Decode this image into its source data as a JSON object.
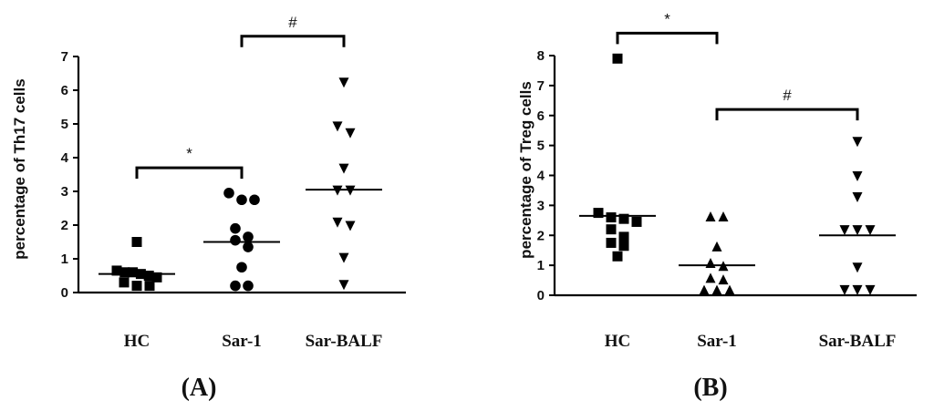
{
  "chart_data": [
    {
      "type": "scatter",
      "panel": "(A)",
      "ylabel": "percentage of Th17 cells",
      "ylim": [
        0,
        7
      ],
      "yticks": [
        "0",
        "1",
        "2",
        "3",
        "4",
        "5",
        "6",
        "7"
      ],
      "categories": [
        "HC",
        "Sar-1",
        "Sar-BALF"
      ],
      "groups": [
        {
          "category": "HC",
          "marker": "square",
          "values": [
            1.5,
            0.65,
            0.6,
            0.6,
            0.55,
            0.5,
            0.45,
            0.3,
            0.2,
            0.2
          ],
          "mean": 0.55
        },
        {
          "category": "Sar-1",
          "marker": "circle",
          "values": [
            2.95,
            2.75,
            2.75,
            1.9,
            1.65,
            1.55,
            1.35,
            0.75,
            0.2,
            0.2
          ],
          "mean": 1.5
        },
        {
          "category": "Sar-BALF",
          "marker": "triangle-down",
          "values": [
            6.25,
            4.95,
            4.75,
            3.7,
            3.05,
            3.05,
            2.1,
            2.0,
            1.05,
            0.25
          ],
          "mean": 3.05
        }
      ],
      "annotations": [
        {
          "text": "*",
          "from": "HC",
          "to": "Sar-1",
          "y": 3.7
        },
        {
          "text": "#",
          "from": "Sar-1",
          "to": "Sar-BALF",
          "y": 7.6
        }
      ]
    },
    {
      "type": "scatter",
      "panel": "(B)",
      "ylabel": "percentage of Treg cells",
      "ylim": [
        0,
        8
      ],
      "yticks": [
        "0",
        "1",
        "2",
        "3",
        "4",
        "5",
        "6",
        "7",
        "8"
      ],
      "categories": [
        "HC",
        "Sar-1",
        "Sar-BALF"
      ],
      "groups": [
        {
          "category": "HC",
          "marker": "square",
          "values": [
            7.9,
            2.75,
            2.6,
            2.55,
            2.45,
            2.2,
            1.95,
            1.75,
            1.65,
            1.3
          ],
          "mean": 2.65
        },
        {
          "category": "Sar-1",
          "marker": "triangle-up",
          "values": [
            2.6,
            2.6,
            1.6,
            1.05,
            0.95,
            0.55,
            0.5,
            0.15,
            0.15,
            0.15
          ],
          "mean": 1.0
        },
        {
          "category": "Sar-BALF",
          "marker": "triangle-down",
          "values": [
            5.15,
            4.0,
            3.3,
            2.2,
            2.2,
            2.2,
            0.95,
            0.2,
            0.2,
            0.2
          ],
          "mean": 2.0
        }
      ],
      "annotations": [
        {
          "text": "*",
          "from": "HC",
          "to": "Sar-1",
          "y": 8.75
        },
        {
          "text": "#",
          "from": "Sar-1",
          "to": "Sar-BALF",
          "y": 6.2
        }
      ]
    }
  ]
}
